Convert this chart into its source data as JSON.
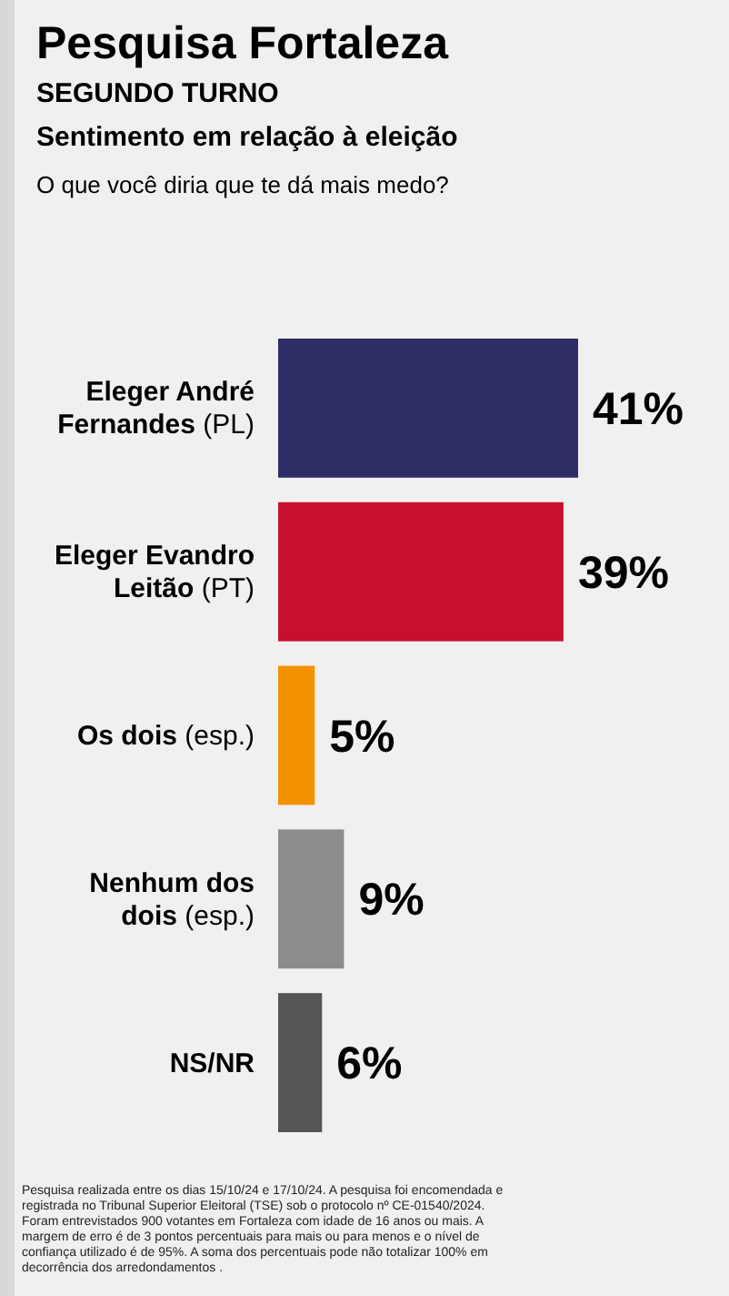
{
  "chart_data": {
    "type": "bar",
    "orientation": "horizontal",
    "title": "Pesquisa Fortaleza",
    "subtitle": "SEGUNDO TURNO",
    "annotations": [
      "Sentimento em relação à eleição",
      "O que você diria que te dá mais medo?",
      "Pesquisa realizada entre os dias 15/10/24 e  17/10/24. A pesquisa foi encomendada e registrada no Tribunal Superior Eleitoral (TSE) sob o protocolo nº CE-01540/2024. Foram entrevistados 900 votantes em Fortaleza com idade de 16 anos ou mais. A margem de erro é de 3 pontos percentuais para mais ou para menos e o nível de confiança utilizado é de 95%. A soma dos percentuais pode não totalizar 100% em decorrência dos arredondamentos ."
    ],
    "categories": [
      "Eleger André Fernandes (PL)",
      "Eleger Evandro Leitão (PT)",
      "Os dois (esp.)",
      "Nenhum dos dois (esp.)",
      "NS/NR"
    ],
    "values": [
      41,
      39,
      5,
      9,
      6
    ],
    "colors": [
      "#2e2d66",
      "#c8102e",
      "#f39200",
      "#8c8c8c",
      "#555555"
    ],
    "value_labels": [
      "41%",
      "39%",
      "5%",
      "9%",
      "6%"
    ]
  }
}
